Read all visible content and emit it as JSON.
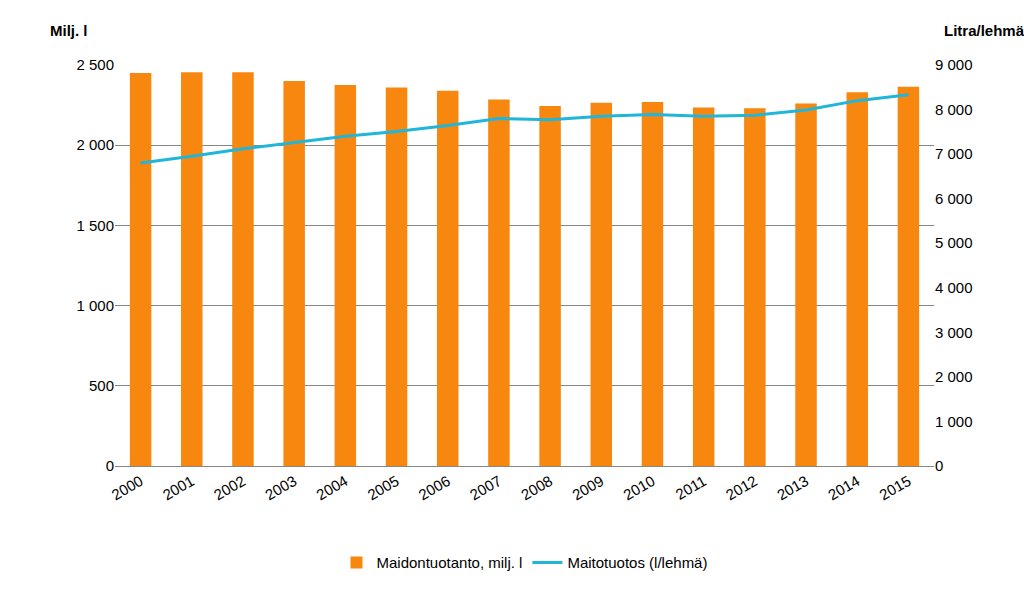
{
  "chart_data": {
    "type": "bar",
    "ylabel": "Milj. l",
    "y2label": "Litra/lehmä",
    "categories": [
      "2000",
      "2001",
      "2002",
      "2003",
      "2004",
      "2005",
      "2006",
      "2007",
      "2008",
      "2009",
      "2010",
      "2011",
      "2012",
      "2013",
      "2014",
      "2015"
    ],
    "series": [
      {
        "name": "Maidontuotanto, milj. l",
        "type": "bar",
        "color": "#F7870F",
        "values": [
          2450,
          2455,
          2455,
          2400,
          2375,
          2360,
          2340,
          2285,
          2245,
          2265,
          2270,
          2235,
          2230,
          2260,
          2330,
          2365
        ]
      },
      {
        "name": "Maitotuotos (l/lehmä)",
        "type": "line",
        "axis": "y2",
        "color": "#1FB6D9",
        "values": [
          6800,
          6950,
          7120,
          7260,
          7400,
          7510,
          7640,
          7800,
          7770,
          7850,
          7890,
          7850,
          7870,
          7990,
          8200,
          8330
        ]
      }
    ],
    "ylim": [
      0,
      2500
    ],
    "yticks": [
      0,
      500,
      {
        "value": 1000,
        "label": "1 000"
      },
      {
        "value": 1500,
        "label": "1 500"
      },
      {
        "value": 2000,
        "label": "2 000"
      },
      {
        "value": 2500,
        "label": "2 500"
      }
    ],
    "y2lim": [
      0,
      9000
    ],
    "y2ticks": [
      0,
      {
        "value": 1000,
        "label": "1 000"
      },
      {
        "value": 2000,
        "label": "2 000"
      },
      {
        "value": 3000,
        "label": "3 000"
      },
      {
        "value": 4000,
        "label": "4 000"
      },
      {
        "value": 5000,
        "label": "5 000"
      },
      {
        "value": 6000,
        "label": "6 000"
      },
      {
        "value": 7000,
        "label": "7 000"
      },
      {
        "value": 8000,
        "label": "8 000"
      },
      {
        "value": 9000,
        "label": "9 000"
      }
    ],
    "grid": true,
    "legend": "bottom"
  }
}
